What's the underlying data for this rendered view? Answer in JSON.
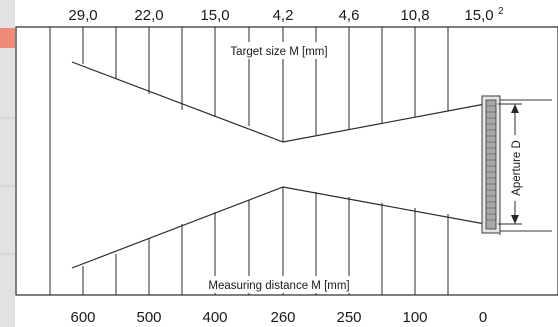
{
  "top_values": [
    "29,0",
    "22,0",
    "15,0",
    "4,2",
    "4,6",
    "10,8",
    "15,0"
  ],
  "top_superscript": "2",
  "bottom_values": [
    "600",
    "500",
    "400",
    "260",
    "250",
    "100",
    "0"
  ],
  "labels": {
    "target_size": "Target size M [mm]",
    "measuring_distance": "Measuring distance M [mm]",
    "aperture": "Aperture D"
  },
  "colors": {
    "side_bar_accent": "#f08a78",
    "side_bar_gray": "#dedede",
    "line": "#2a2a2a"
  }
}
